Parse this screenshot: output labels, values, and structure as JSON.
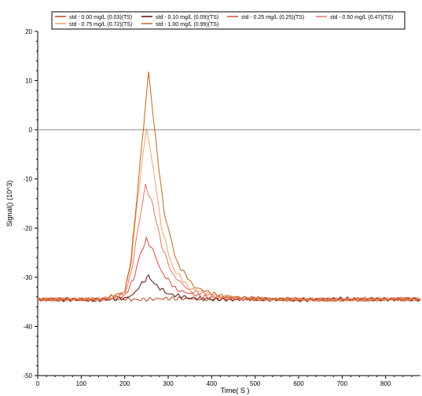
{
  "chart_data": {
    "type": "line",
    "xlabel": "Time( S )",
    "ylabel": "Signal() (10^3)",
    "xlim": [
      0,
      880
    ],
    "ylim": [
      -50,
      20
    ],
    "xticks": [
      0,
      100,
      200,
      300,
      400,
      500,
      600,
      700,
      800
    ],
    "yticks": [
      20,
      10,
      0,
      -10,
      -20,
      -30,
      -40,
      -50
    ],
    "reference_line_y": 0,
    "grid": false,
    "legend_position": "top",
    "baseline": -34.5,
    "series": [
      {
        "name": "std - 0.00 mg/L (0.03)(TS)",
        "color": "#b34a1c",
        "x": [
          0,
          100,
          200,
          230,
          300,
          400,
          500,
          600,
          700,
          800,
          880
        ],
        "y": [
          -34.5,
          -34.6,
          -34.4,
          -34.6,
          -34.3,
          -34.5,
          -34.4,
          -34.6,
          -34.5,
          -34.4,
          -34.5
        ]
      },
      {
        "name": "std - 0.10 mg/L (0.09)(TS)",
        "color": "#5a1010",
        "x": [
          0,
          150,
          200,
          220,
          240,
          255,
          270,
          300,
          350,
          400,
          500,
          600,
          700,
          800,
          880
        ],
        "y": [
          -34.5,
          -34.6,
          -34.3,
          -33.5,
          -31.2,
          -29.8,
          -31.5,
          -33.4,
          -34.2,
          -34.5,
          -34.5,
          -34.6,
          -34.4,
          -34.5,
          -34.5
        ]
      },
      {
        "name": "std - 0.25 mg/L (0.25)(TS)",
        "color": "#d84a3a",
        "x": [
          0,
          150,
          200,
          220,
          235,
          250,
          265,
          285,
          320,
          380,
          450,
          600,
          700,
          800,
          880
        ],
        "y": [
          -34.5,
          -34.5,
          -33.8,
          -30.5,
          -25.5,
          -22.3,
          -24.5,
          -29.0,
          -32.6,
          -34.0,
          -34.4,
          -34.5,
          -34.6,
          -34.5,
          -34.4
        ]
      },
      {
        "name": "std - 0.50 mg/L (0.47)(TS)",
        "color": "#e8756a",
        "x": [
          0,
          150,
          200,
          215,
          230,
          248,
          265,
          285,
          310,
          350,
          420,
          500,
          600,
          700,
          800,
          880
        ],
        "y": [
          -34.5,
          -34.5,
          -33.5,
          -29.0,
          -20.5,
          -11.2,
          -15.5,
          -23.5,
          -29.5,
          -32.8,
          -34.0,
          -34.4,
          -34.5,
          -34.6,
          -34.5,
          -34.5
        ]
      },
      {
        "name": "std - 0.75 mg/L (0.72)(TS)",
        "color": "#f0a070",
        "x": [
          0,
          150,
          200,
          215,
          230,
          250,
          265,
          285,
          310,
          350,
          420,
          500,
          600,
          700,
          800,
          880
        ],
        "y": [
          -34.5,
          -34.4,
          -33.2,
          -27.0,
          -14.0,
          0.6,
          -7.5,
          -20.0,
          -28.0,
          -32.3,
          -33.9,
          -34.4,
          -34.5,
          -34.6,
          -34.4,
          -34.5
        ]
      },
      {
        "name": "std - 1.00 mg/L (0.99)(TS)",
        "color": "#c4641c",
        "x": [
          0,
          150,
          200,
          215,
          232,
          255,
          270,
          290,
          320,
          360,
          420,
          500,
          600,
          700,
          800,
          880
        ],
        "y": [
          -34.5,
          -34.5,
          -33.0,
          -26.0,
          -10.0,
          11.8,
          -1.0,
          -16.5,
          -27.0,
          -32.0,
          -33.8,
          -34.3,
          -34.5,
          -34.6,
          -34.5,
          -34.5
        ]
      }
    ]
  }
}
